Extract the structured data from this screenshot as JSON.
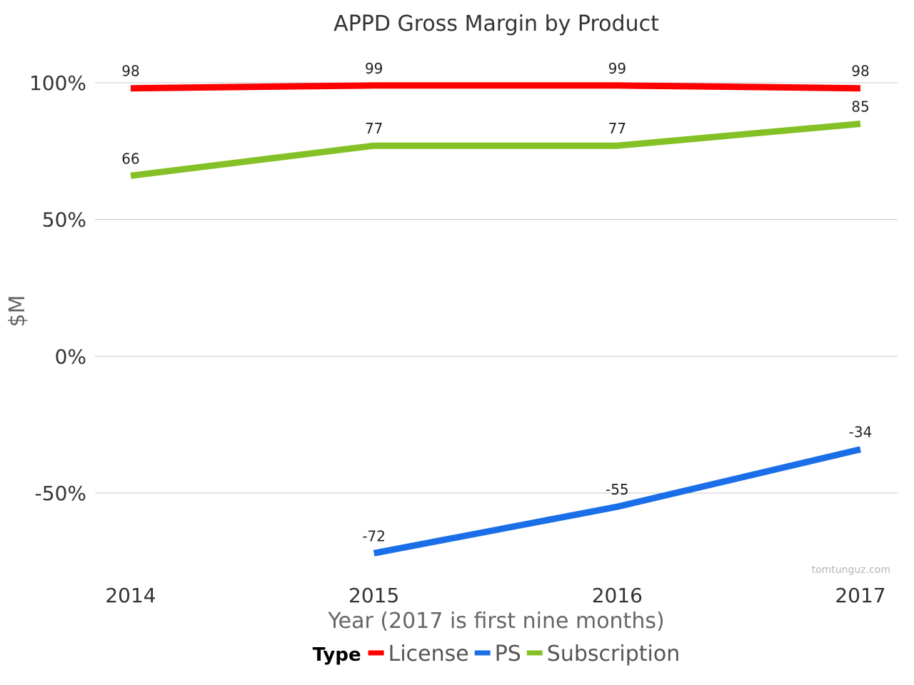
{
  "chart_data": {
    "type": "line",
    "title": "APPD Gross Margin by Product",
    "xlabel": "Year (2017 is first nine months)",
    "ylabel": "$M",
    "categories": [
      "2014",
      "2015",
      "2016",
      "2017"
    ],
    "y_ticks": [
      100,
      50,
      0,
      -50
    ],
    "y_tick_labels": [
      "100%",
      "50%",
      "0%",
      "-50%"
    ],
    "ylim": [
      -82,
      104
    ],
    "grid": true,
    "legend": {
      "title": "Type",
      "placement": "bottom"
    },
    "series": [
      {
        "name": "License",
        "color": "#ff0000",
        "values": [
          98,
          99,
          99,
          98
        ],
        "labels": [
          "98",
          "99",
          "99",
          "98"
        ]
      },
      {
        "name": "PS",
        "color": "#1a6fe8",
        "values": [
          null,
          -72,
          -55,
          -34
        ],
        "labels": [
          "",
          "-72",
          "-55",
          "-34"
        ]
      },
      {
        "name": "Subscription",
        "color": "#84c126",
        "values": [
          66,
          77,
          77,
          85
        ],
        "labels": [
          "66",
          "77",
          "77",
          "85"
        ]
      }
    ]
  },
  "watermark": "tomtunguz.com"
}
